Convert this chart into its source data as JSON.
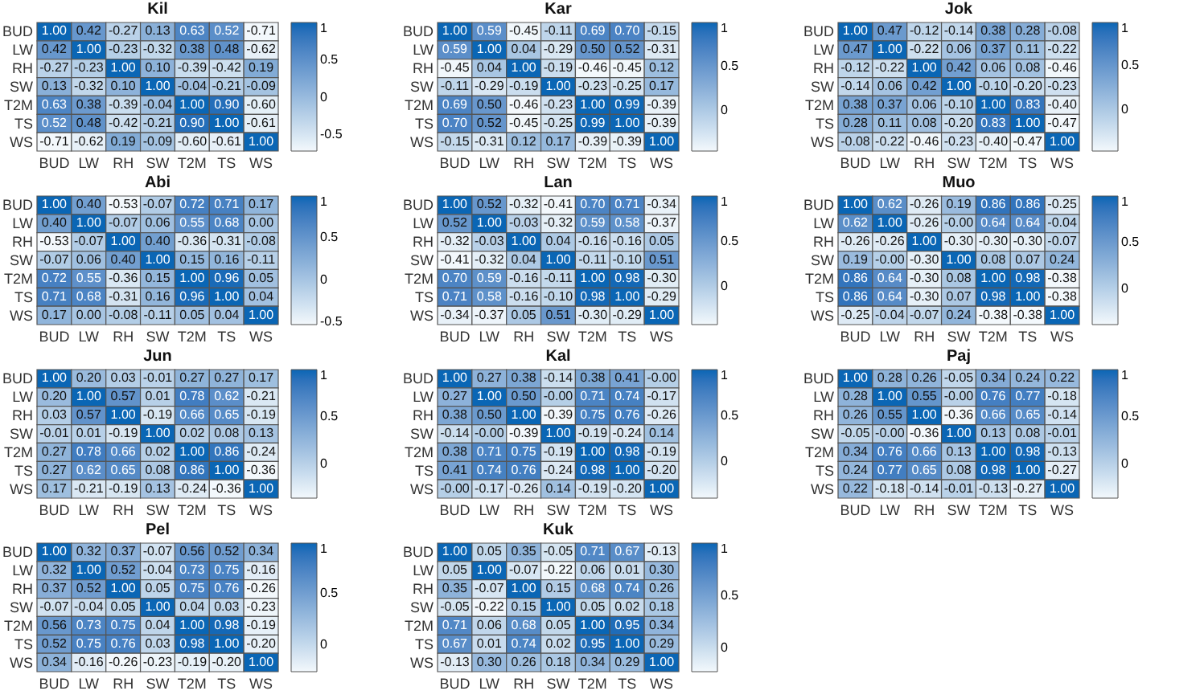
{
  "chart_data": [
    {
      "type": "heatmap",
      "title": "Kil",
      "categories": [
        "BUD",
        "LW",
        "RH",
        "SW",
        "T2M",
        "TS",
        "WS"
      ],
      "y_categories": [
        "BUD",
        "LW",
        "RH",
        "SW",
        "T2M",
        "TS",
        "WS"
      ],
      "clim": [
        -0.71,
        1
      ],
      "cticks": [
        -0.5,
        0,
        0.5,
        1
      ],
      "cells": [
        [
          1.0,
          0.42,
          -0.27,
          0.13,
          0.63,
          0.52,
          -0.71
        ],
        [
          0.42,
          1.0,
          -0.23,
          -0.32,
          0.38,
          0.48,
          -0.62
        ],
        [
          -0.27,
          -0.23,
          1.0,
          0.1,
          -0.39,
          -0.42,
          0.19
        ],
        [
          0.13,
          -0.32,
          0.1,
          1.0,
          -0.04,
          -0.21,
          -0.09
        ],
        [
          0.63,
          0.38,
          -0.39,
          -0.04,
          1.0,
          0.9,
          -0.6
        ],
        [
          0.52,
          0.48,
          -0.42,
          -0.21,
          0.9,
          1.0,
          -0.61
        ],
        [
          -0.71,
          -0.62,
          0.19,
          -0.09,
          -0.6,
          -0.61,
          1.0
        ]
      ],
      "cell_labels": [
        [
          "1.00",
          "0.42",
          "-0.27",
          "0.13",
          "0.63",
          "0.52",
          "-0.71"
        ],
        [
          "0.42",
          "1.00",
          "-0.23",
          "-0.32",
          "0.38",
          "0.48",
          "-0.62"
        ],
        [
          "-0.27",
          "-0.23",
          "1.00",
          "0.10",
          "-0.39",
          "-0.42",
          "0.19"
        ],
        [
          "0.13",
          "-0.32",
          "0.10",
          "1.00",
          "-0.04",
          "-0.21",
          "-0.09"
        ],
        [
          "0.63",
          "0.38",
          "-0.39",
          "-0.04",
          "1.00",
          "0.90",
          "-0.60"
        ],
        [
          "0.52",
          "0.48",
          "-0.42",
          "-0.21",
          "0.90",
          "1.00",
          "-0.61"
        ],
        [
          "-0.71",
          "-0.62",
          "0.19",
          "-0.09",
          "-0.60",
          "-0.61",
          "1.00"
        ]
      ]
    },
    {
      "type": "heatmap",
      "title": "Kar",
      "categories": [
        "BUD",
        "LW",
        "RH",
        "SW",
        "T2M",
        "TS",
        "WS"
      ],
      "y_categories": [
        "BUD",
        "LW",
        "RH",
        "SW",
        "T2M",
        "TS",
        "WS"
      ],
      "clim": [
        -0.46,
        1
      ],
      "cticks": [
        0,
        0.5,
        1
      ],
      "cells": [
        [
          1.0,
          0.59,
          -0.45,
          -0.11,
          0.69,
          0.7,
          -0.15
        ],
        [
          0.59,
          1.0,
          0.04,
          -0.29,
          0.5,
          0.52,
          -0.31
        ],
        [
          -0.45,
          0.04,
          1.0,
          -0.19,
          -0.46,
          -0.45,
          0.12
        ],
        [
          -0.11,
          -0.29,
          -0.19,
          1.0,
          -0.23,
          -0.25,
          0.17
        ],
        [
          0.69,
          0.5,
          -0.46,
          -0.23,
          1.0,
          0.99,
          -0.39
        ],
        [
          0.7,
          0.52,
          -0.45,
          -0.25,
          0.99,
          1.0,
          -0.39
        ],
        [
          -0.15,
          -0.31,
          0.12,
          0.17,
          -0.39,
          -0.39,
          1.0
        ]
      ],
      "cell_labels": [
        [
          "1.00",
          "0.59",
          "-0.45",
          "-0.11",
          "0.69",
          "0.70",
          "-0.15"
        ],
        [
          "0.59",
          "1.00",
          "0.04",
          "-0.29",
          "0.50",
          "0.52",
          "-0.31"
        ],
        [
          "-0.45",
          "0.04",
          "1.00",
          "-0.19",
          "-0.46",
          "-0.45",
          "0.12"
        ],
        [
          "-0.11",
          "-0.29",
          "-0.19",
          "1.00",
          "-0.23",
          "-0.25",
          "0.17"
        ],
        [
          "0.69",
          "0.50",
          "-0.46",
          "-0.23",
          "1.00",
          "0.99",
          "-0.39"
        ],
        [
          "0.70",
          "0.52",
          "-0.45",
          "-0.25",
          "0.99",
          "1.00",
          "-0.39"
        ],
        [
          "-0.15",
          "-0.31",
          "0.12",
          "0.17",
          "-0.39",
          "-0.39",
          "1.00"
        ]
      ]
    },
    {
      "type": "heatmap",
      "title": "Jok",
      "categories": [
        "BUD",
        "LW",
        "RH",
        "SW",
        "T2M",
        "TS",
        "WS"
      ],
      "y_categories": [
        "BUD",
        "LW",
        "RH",
        "SW",
        "T2M",
        "TS",
        "WS"
      ],
      "clim": [
        -0.47,
        1
      ],
      "cticks": [
        0,
        0.5,
        1
      ],
      "cells": [
        [
          1.0,
          0.47,
          -0.12,
          -0.14,
          0.38,
          0.28,
          -0.08
        ],
        [
          0.47,
          1.0,
          -0.22,
          0.06,
          0.37,
          0.11,
          -0.22
        ],
        [
          -0.12,
          -0.22,
          1.0,
          0.42,
          0.06,
          0.08,
          -0.46
        ],
        [
          -0.14,
          0.06,
          0.42,
          1.0,
          -0.1,
          -0.2,
          -0.23
        ],
        [
          0.38,
          0.37,
          0.06,
          -0.1,
          1.0,
          0.83,
          -0.4
        ],
        [
          0.28,
          0.11,
          0.08,
          -0.2,
          0.83,
          1.0,
          -0.47
        ],
        [
          -0.08,
          -0.22,
          -0.46,
          -0.23,
          -0.4,
          -0.47,
          1.0
        ]
      ],
      "cell_labels": [
        [
          "1.00",
          "0.47",
          "-0.12",
          "-0.14",
          "0.38",
          "0.28",
          "-0.08"
        ],
        [
          "0.47",
          "1.00",
          "-0.22",
          "0.06",
          "0.37",
          "0.11",
          "-0.22"
        ],
        [
          "-0.12",
          "-0.22",
          "1.00",
          "0.42",
          "0.06",
          "0.08",
          "-0.46"
        ],
        [
          "-0.14",
          "0.06",
          "0.42",
          "1.00",
          "-0.10",
          "-0.20",
          "-0.23"
        ],
        [
          "0.38",
          "0.37",
          "0.06",
          "-0.10",
          "1.00",
          "0.83",
          "-0.40"
        ],
        [
          "0.28",
          "0.11",
          "0.08",
          "-0.20",
          "0.83",
          "1.00",
          "-0.47"
        ],
        [
          "-0.08",
          "-0.22",
          "-0.46",
          "-0.23",
          "-0.40",
          "-0.47",
          "1.00"
        ]
      ]
    },
    {
      "type": "heatmap",
      "title": "Abi",
      "categories": [
        "BUD",
        "LW",
        "RH",
        "SW",
        "T2M",
        "TS",
        "WS"
      ],
      "y_categories": [
        "BUD",
        "LW",
        "RH",
        "SW",
        "T2M",
        "TS",
        "WS"
      ],
      "clim": [
        -0.53,
        1
      ],
      "cticks": [
        -0.5,
        0,
        0.5,
        1
      ],
      "cells": [
        [
          1.0,
          0.4,
          -0.53,
          -0.07,
          0.72,
          0.71,
          0.17
        ],
        [
          0.4,
          1.0,
          -0.07,
          0.06,
          0.55,
          0.68,
          0.0
        ],
        [
          -0.53,
          -0.07,
          1.0,
          0.4,
          -0.36,
          -0.31,
          -0.08
        ],
        [
          -0.07,
          0.06,
          0.4,
          1.0,
          0.15,
          0.16,
          -0.11
        ],
        [
          0.72,
          0.55,
          -0.36,
          0.15,
          1.0,
          0.96,
          0.05
        ],
        [
          0.71,
          0.68,
          -0.31,
          0.16,
          0.96,
          1.0,
          0.04
        ],
        [
          0.17,
          0.0,
          -0.08,
          -0.11,
          0.05,
          0.04,
          1.0
        ]
      ],
      "cell_labels": [
        [
          "1.00",
          "0.40",
          "-0.53",
          "-0.07",
          "0.72",
          "0.71",
          "0.17"
        ],
        [
          "0.40",
          "1.00",
          "-0.07",
          "0.06",
          "0.55",
          "0.68",
          "0.00"
        ],
        [
          "-0.53",
          "-0.07",
          "1.00",
          "0.40",
          "-0.36",
          "-0.31",
          "-0.08"
        ],
        [
          "-0.07",
          "0.06",
          "0.40",
          "1.00",
          "0.15",
          "0.16",
          "-0.11"
        ],
        [
          "0.72",
          "0.55",
          "-0.36",
          "0.15",
          "1.00",
          "0.96",
          "0.05"
        ],
        [
          "0.71",
          "0.68",
          "-0.31",
          "0.16",
          "0.96",
          "1.00",
          "0.04"
        ],
        [
          "0.17",
          "0.00",
          "-0.08",
          "-0.11",
          "0.05",
          "0.04",
          "1.00"
        ]
      ]
    },
    {
      "type": "heatmap",
      "title": "Lan",
      "categories": [
        "BUD",
        "LW",
        "RH",
        "SW",
        "T2M",
        "TS",
        "WS"
      ],
      "y_categories": [
        "BUD",
        "LW",
        "RH",
        "SW",
        "T2M",
        "TS",
        "WS"
      ],
      "clim": [
        -0.41,
        1
      ],
      "cticks": [
        0,
        0.5,
        1
      ],
      "cells": [
        [
          1.0,
          0.52,
          -0.32,
          -0.41,
          0.7,
          0.71,
          -0.34
        ],
        [
          0.52,
          1.0,
          -0.03,
          -0.32,
          0.59,
          0.58,
          -0.37
        ],
        [
          -0.32,
          -0.03,
          1.0,
          0.04,
          -0.16,
          -0.16,
          0.05
        ],
        [
          -0.41,
          -0.32,
          0.04,
          1.0,
          -0.11,
          -0.1,
          0.51
        ],
        [
          0.7,
          0.59,
          -0.16,
          -0.11,
          1.0,
          0.98,
          -0.3
        ],
        [
          0.71,
          0.58,
          -0.16,
          -0.1,
          0.98,
          1.0,
          -0.29
        ],
        [
          -0.34,
          -0.37,
          0.05,
          0.51,
          -0.3,
          -0.29,
          1.0
        ]
      ],
      "cell_labels": [
        [
          "1.00",
          "0.52",
          "-0.32",
          "-0.41",
          "0.70",
          "0.71",
          "-0.34"
        ],
        [
          "0.52",
          "1.00",
          "-0.03",
          "-0.32",
          "0.59",
          "0.58",
          "-0.37"
        ],
        [
          "-0.32",
          "-0.03",
          "1.00",
          "0.04",
          "-0.16",
          "-0.16",
          "0.05"
        ],
        [
          "-0.41",
          "-0.32",
          "0.04",
          "1.00",
          "-0.11",
          "-0.10",
          "0.51"
        ],
        [
          "0.70",
          "0.59",
          "-0.16",
          "-0.11",
          "1.00",
          "0.98",
          "-0.30"
        ],
        [
          "0.71",
          "0.58",
          "-0.16",
          "-0.10",
          "0.98",
          "1.00",
          "-0.29"
        ],
        [
          "-0.34",
          "-0.37",
          "0.05",
          "0.51",
          "-0.30",
          "-0.29",
          "1.00"
        ]
      ]
    },
    {
      "type": "heatmap",
      "title": "Muo",
      "categories": [
        "BUD",
        "LW",
        "RH",
        "SW",
        "T2M",
        "TS",
        "WS"
      ],
      "y_categories": [
        "BUD",
        "LW",
        "RH",
        "SW",
        "T2M",
        "TS",
        "WS"
      ],
      "clim": [
        -0.38,
        1
      ],
      "cticks": [
        0,
        0.5,
        1
      ],
      "cells": [
        [
          1.0,
          0.62,
          -0.26,
          0.19,
          0.86,
          0.86,
          -0.25
        ],
        [
          0.62,
          1.0,
          -0.26,
          0,
          0.64,
          0.64,
          -0.04
        ],
        [
          -0.26,
          -0.26,
          1.0,
          -0.3,
          -0.3,
          -0.3,
          -0.07
        ],
        [
          0.19,
          0,
          -0.3,
          1.0,
          0.08,
          0.07,
          0.24
        ],
        [
          0.86,
          0.64,
          -0.3,
          0.08,
          1.0,
          0.98,
          -0.38
        ],
        [
          0.86,
          0.64,
          -0.3,
          0.07,
          0.98,
          1.0,
          -0.38
        ],
        [
          -0.25,
          -0.04,
          -0.07,
          0.24,
          -0.38,
          -0.38,
          1.0
        ]
      ],
      "cell_labels": [
        [
          "1.00",
          "0.62",
          "-0.26",
          "0.19",
          "0.86",
          "0.86",
          "-0.25"
        ],
        [
          "0.62",
          "1.00",
          "-0.26",
          "-0.00",
          "0.64",
          "0.64",
          "-0.04"
        ],
        [
          "-0.26",
          "-0.26",
          "1.00",
          "-0.30",
          "-0.30",
          "-0.30",
          "-0.07"
        ],
        [
          "0.19",
          "-0.00",
          "-0.30",
          "1.00",
          "0.08",
          "0.07",
          "0.24"
        ],
        [
          "0.86",
          "0.64",
          "-0.30",
          "0.08",
          "1.00",
          "0.98",
          "-0.38"
        ],
        [
          "0.86",
          "0.64",
          "-0.30",
          "0.07",
          "0.98",
          "1.00",
          "-0.38"
        ],
        [
          "-0.25",
          "-0.04",
          "-0.07",
          "0.24",
          "-0.38",
          "-0.38",
          "1.00"
        ]
      ]
    },
    {
      "type": "heatmap",
      "title": "Jun",
      "categories": [
        "BUD",
        "LW",
        "RH",
        "SW",
        "T2M",
        "TS",
        "WS"
      ],
      "y_categories": [
        "BUD",
        "LW",
        "RH",
        "SW",
        "T2M",
        "TS",
        "WS"
      ],
      "clim": [
        -0.36,
        1
      ],
      "cticks": [
        0,
        0.5,
        1
      ],
      "cells": [
        [
          1.0,
          0.2,
          0.03,
          -0.01,
          0.27,
          0.27,
          0.17
        ],
        [
          0.2,
          1.0,
          0.57,
          0.01,
          0.78,
          0.62,
          -0.21
        ],
        [
          0.03,
          0.57,
          1.0,
          -0.19,
          0.66,
          0.65,
          -0.19
        ],
        [
          -0.01,
          0.01,
          -0.19,
          1.0,
          0.02,
          0.08,
          0.13
        ],
        [
          0.27,
          0.78,
          0.66,
          0.02,
          1.0,
          0.86,
          -0.24
        ],
        [
          0.27,
          0.62,
          0.65,
          0.08,
          0.86,
          1.0,
          -0.36
        ],
        [
          0.17,
          -0.21,
          -0.19,
          0.13,
          -0.24,
          -0.36,
          1.0
        ]
      ],
      "cell_labels": [
        [
          "1.00",
          "0.20",
          "0.03",
          "-0.01",
          "0.27",
          "0.27",
          "0.17"
        ],
        [
          "0.20",
          "1.00",
          "0.57",
          "0.01",
          "0.78",
          "0.62",
          "-0.21"
        ],
        [
          "0.03",
          "0.57",
          "1.00",
          "-0.19",
          "0.66",
          "0.65",
          "-0.19"
        ],
        [
          "-0.01",
          "0.01",
          "-0.19",
          "1.00",
          "0.02",
          "0.08",
          "0.13"
        ],
        [
          "0.27",
          "0.78",
          "0.66",
          "0.02",
          "1.00",
          "0.86",
          "-0.24"
        ],
        [
          "0.27",
          "0.62",
          "0.65",
          "0.08",
          "0.86",
          "1.00",
          "-0.36"
        ],
        [
          "0.17",
          "-0.21",
          "-0.19",
          "0.13",
          "-0.24",
          "-0.36",
          "1.00"
        ]
      ]
    },
    {
      "type": "heatmap",
      "title": "Kal",
      "categories": [
        "BUD",
        "LW",
        "RH",
        "SW",
        "T2M",
        "TS",
        "WS"
      ],
      "y_categories": [
        "BUD",
        "LW",
        "RH",
        "SW",
        "T2M",
        "TS",
        "WS"
      ],
      "clim": [
        -0.39,
        1
      ],
      "cticks": [
        0,
        0.5,
        1
      ],
      "cells": [
        [
          1.0,
          0.27,
          0.38,
          -0.14,
          0.38,
          0.41,
          0
        ],
        [
          0.27,
          1.0,
          0.5,
          0,
          0.71,
          0.74,
          -0.17
        ],
        [
          0.38,
          0.5,
          1.0,
          -0.39,
          0.75,
          0.76,
          -0.26
        ],
        [
          -0.14,
          0,
          -0.39,
          1.0,
          -0.19,
          -0.24,
          0.14
        ],
        [
          0.38,
          0.71,
          0.75,
          -0.19,
          1.0,
          0.98,
          -0.19
        ],
        [
          0.41,
          0.74,
          0.76,
          -0.24,
          0.98,
          1.0,
          -0.2
        ],
        [
          0,
          -0.17,
          -0.26,
          0.14,
          -0.19,
          -0.2,
          1.0
        ]
      ],
      "cell_labels": [
        [
          "1.00",
          "0.27",
          "0.38",
          "-0.14",
          "0.38",
          "0.41",
          "-0.00"
        ],
        [
          "0.27",
          "1.00",
          "0.50",
          "-0.00",
          "0.71",
          "0.74",
          "-0.17"
        ],
        [
          "0.38",
          "0.50",
          "1.00",
          "-0.39",
          "0.75",
          "0.76",
          "-0.26"
        ],
        [
          "-0.14",
          "-0.00",
          "-0.39",
          "1.00",
          "-0.19",
          "-0.24",
          "0.14"
        ],
        [
          "0.38",
          "0.71",
          "0.75",
          "-0.19",
          "1.00",
          "0.98",
          "-0.19"
        ],
        [
          "0.41",
          "0.74",
          "0.76",
          "-0.24",
          "0.98",
          "1.00",
          "-0.20"
        ],
        [
          "-0.00",
          "-0.17",
          "-0.26",
          "0.14",
          "-0.19",
          "-0.20",
          "1.00"
        ]
      ]
    },
    {
      "type": "heatmap",
      "title": "Paj",
      "categories": [
        "BUD",
        "LW",
        "RH",
        "SW",
        "T2M",
        "TS",
        "WS"
      ],
      "y_categories": [
        "BUD",
        "LW",
        "RH",
        "SW",
        "T2M",
        "TS",
        "WS"
      ],
      "clim": [
        -0.36,
        1
      ],
      "cticks": [
        0,
        0.5,
        1
      ],
      "cells": [
        [
          1.0,
          0.28,
          0.26,
          -0.05,
          0.34,
          0.24,
          0.22
        ],
        [
          0.28,
          1.0,
          0.55,
          0,
          0.76,
          0.77,
          -0.18
        ],
        [
          0.26,
          0.55,
          1.0,
          -0.36,
          0.66,
          0.65,
          -0.14
        ],
        [
          -0.05,
          0,
          -0.36,
          1.0,
          0.13,
          0.08,
          -0.01
        ],
        [
          0.34,
          0.76,
          0.66,
          0.13,
          1.0,
          0.98,
          -0.13
        ],
        [
          0.24,
          0.77,
          0.65,
          0.08,
          0.98,
          1.0,
          -0.27
        ],
        [
          0.22,
          -0.18,
          -0.14,
          -0.01,
          -0.13,
          -0.27,
          1.0
        ]
      ],
      "cell_labels": [
        [
          "1.00",
          "0.28",
          "0.26",
          "-0.05",
          "0.34",
          "0.24",
          "0.22"
        ],
        [
          "0.28",
          "1.00",
          "0.55",
          "-0.00",
          "0.76",
          "0.77",
          "-0.18"
        ],
        [
          "0.26",
          "0.55",
          "1.00",
          "-0.36",
          "0.66",
          "0.65",
          "-0.14"
        ],
        [
          "-0.05",
          "-0.00",
          "-0.36",
          "1.00",
          "0.13",
          "0.08",
          "-0.01"
        ],
        [
          "0.34",
          "0.76",
          "0.66",
          "0.13",
          "1.00",
          "0.98",
          "-0.13"
        ],
        [
          "0.24",
          "0.77",
          "0.65",
          "0.08",
          "0.98",
          "1.00",
          "-0.27"
        ],
        [
          "0.22",
          "-0.18",
          "-0.14",
          "-0.01",
          "-0.13",
          "-0.27",
          "1.00"
        ]
      ]
    },
    {
      "type": "heatmap",
      "title": "Pel",
      "categories": [
        "BUD",
        "LW",
        "RH",
        "SW",
        "T2M",
        "TS",
        "WS"
      ],
      "y_categories": [
        "BUD",
        "LW",
        "RH",
        "SW",
        "T2M",
        "TS",
        "WS"
      ],
      "clim": [
        -0.26,
        1
      ],
      "cticks": [
        0,
        0.5,
        1
      ],
      "cells": [
        [
          1.0,
          0.32,
          0.37,
          -0.07,
          0.56,
          0.52,
          0.34
        ],
        [
          0.32,
          1.0,
          0.52,
          -0.04,
          0.73,
          0.75,
          -0.16
        ],
        [
          0.37,
          0.52,
          1.0,
          0.05,
          0.75,
          0.76,
          -0.26
        ],
        [
          -0.07,
          -0.04,
          0.05,
          1.0,
          0.04,
          0.03,
          -0.23
        ],
        [
          0.56,
          0.73,
          0.75,
          0.04,
          1.0,
          0.98,
          -0.19
        ],
        [
          0.52,
          0.75,
          0.76,
          0.03,
          0.98,
          1.0,
          -0.2
        ],
        [
          0.34,
          -0.16,
          -0.26,
          -0.23,
          -0.19,
          -0.2,
          1.0
        ]
      ],
      "cell_labels": [
        [
          "1.00",
          "0.32",
          "0.37",
          "-0.07",
          "0.56",
          "0.52",
          "0.34"
        ],
        [
          "0.32",
          "1.00",
          "0.52",
          "-0.04",
          "0.73",
          "0.75",
          "-0.16"
        ],
        [
          "0.37",
          "0.52",
          "1.00",
          "0.05",
          "0.75",
          "0.76",
          "-0.26"
        ],
        [
          "-0.07",
          "-0.04",
          "0.05",
          "1.00",
          "0.04",
          "0.03",
          "-0.23"
        ],
        [
          "0.56",
          "0.73",
          "0.75",
          "0.04",
          "1.00",
          "0.98",
          "-0.19"
        ],
        [
          "0.52",
          "0.75",
          "0.76",
          "0.03",
          "0.98",
          "1.00",
          "-0.20"
        ],
        [
          "0.34",
          "-0.16",
          "-0.26",
          "-0.23",
          "-0.19",
          "-0.20",
          "1.00"
        ]
      ]
    },
    {
      "type": "heatmap",
      "title": "Kuk",
      "categories": [
        "BUD",
        "LW",
        "RH",
        "SW",
        "T2M",
        "TS",
        "WS"
      ],
      "y_categories": [
        "BUD",
        "LW",
        "RH",
        "SW",
        "T2M",
        "TS",
        "WS"
      ],
      "clim": [
        -0.22,
        1
      ],
      "cticks": [
        0,
        0.5,
        1
      ],
      "cells": [
        [
          1.0,
          0.05,
          0.35,
          -0.05,
          0.71,
          0.67,
          -0.13
        ],
        [
          0.05,
          1.0,
          -0.07,
          -0.22,
          0.06,
          0.01,
          0.3
        ],
        [
          0.35,
          -0.07,
          1.0,
          0.15,
          0.68,
          0.74,
          0.26
        ],
        [
          -0.05,
          -0.22,
          0.15,
          1.0,
          0.05,
          0.02,
          0.18
        ],
        [
          0.71,
          0.06,
          0.68,
          0.05,
          1.0,
          0.95,
          0.34
        ],
        [
          0.67,
          0.01,
          0.74,
          0.02,
          0.95,
          1.0,
          0.29
        ],
        [
          -0.13,
          0.3,
          0.26,
          0.18,
          0.34,
          0.29,
          1.0
        ]
      ],
      "cell_labels": [
        [
          "1.00",
          "0.05",
          "0.35",
          "-0.05",
          "0.71",
          "0.67",
          "-0.13"
        ],
        [
          "0.05",
          "1.00",
          "-0.07",
          "-0.22",
          "0.06",
          "0.01",
          "0.30"
        ],
        [
          "0.35",
          "-0.07",
          "1.00",
          "0.15",
          "0.68",
          "0.74",
          "0.26"
        ],
        [
          "-0.05",
          "-0.22",
          "0.15",
          "1.00",
          "0.05",
          "0.02",
          "0.18"
        ],
        [
          "0.71",
          "0.06",
          "0.68",
          "0.05",
          "1.00",
          "0.95",
          "0.34"
        ],
        [
          "0.67",
          "0.01",
          "0.74",
          "0.02",
          "0.95",
          "1.00",
          "0.29"
        ],
        [
          "-0.13",
          "0.30",
          "0.26",
          "0.18",
          "0.34",
          "0.29",
          "1.00"
        ]
      ]
    }
  ]
}
